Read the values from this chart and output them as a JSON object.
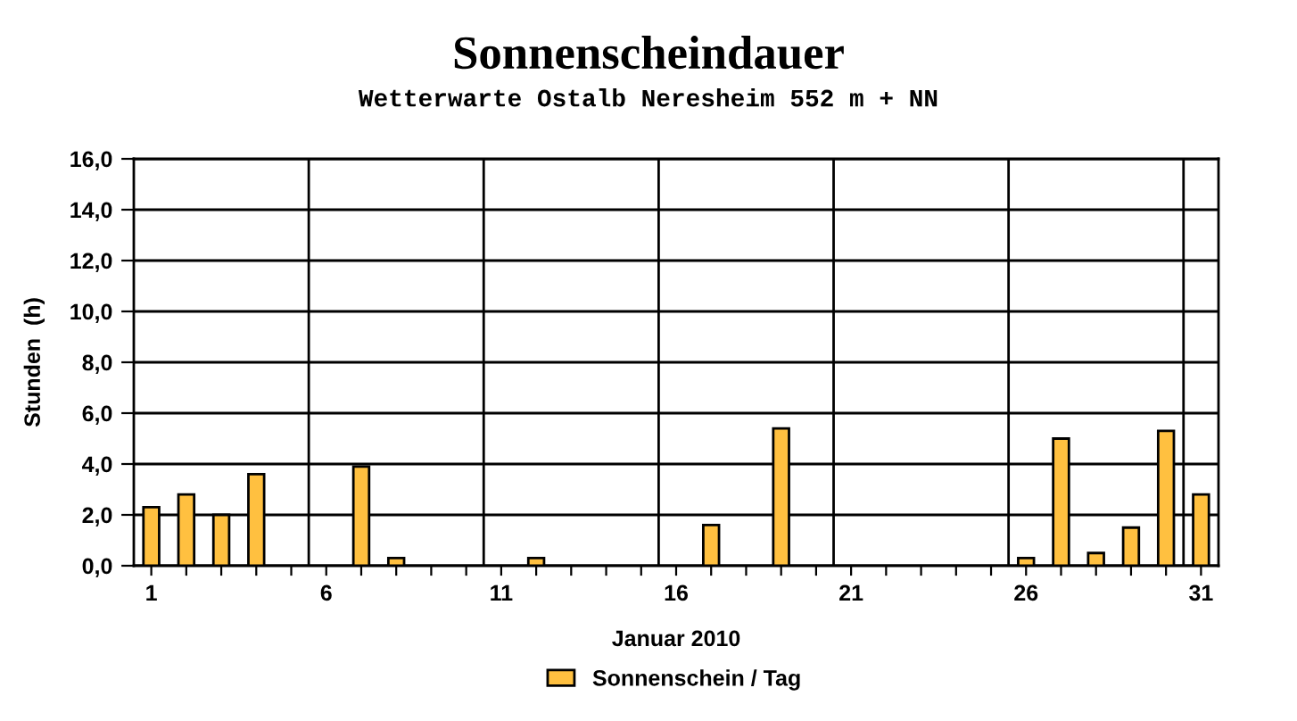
{
  "chart_data": {
    "type": "bar",
    "title": "Sonnenscheindauer",
    "subtitle": "Wetterwarte Ostalb Neresheim 552 m + NN",
    "xlabel": "Januar 2010",
    "ylabel": "Stunden  (h)",
    "categories": [
      "1",
      null,
      null,
      null,
      null,
      "6",
      null,
      null,
      null,
      null,
      "11",
      null,
      null,
      null,
      null,
      "16",
      null,
      null,
      null,
      null,
      "21",
      null,
      null,
      null,
      null,
      "26",
      null,
      null,
      null,
      null,
      "31"
    ],
    "series": [
      {
        "name": "Sonnenschein / Tag",
        "color": "#ffc040",
        "values": [
          2.3,
          2.8,
          2.0,
          3.6,
          0,
          0,
          3.9,
          0.3,
          0,
          0,
          0,
          0.3,
          0,
          0,
          0,
          0,
          1.6,
          0,
          5.4,
          0,
          0,
          0,
          0,
          0,
          0,
          0.3,
          5.0,
          0.5,
          1.5,
          5.3,
          2.8
        ]
      }
    ],
    "ylim": [
      0,
      16
    ],
    "yticks": [
      {
        "value": 0,
        "label": "0,0"
      },
      {
        "value": 2,
        "label": "2,0"
      },
      {
        "value": 4,
        "label": "4,0"
      },
      {
        "value": 6,
        "label": "6,0"
      },
      {
        "value": 8,
        "label": "8,0"
      },
      {
        "value": 10,
        "label": "10,0"
      },
      {
        "value": 12,
        "label": "12,0"
      },
      {
        "value": 14,
        "label": "14,0"
      },
      {
        "value": 16,
        "label": "16,0"
      }
    ],
    "grid": true,
    "legend": "bottom"
  }
}
